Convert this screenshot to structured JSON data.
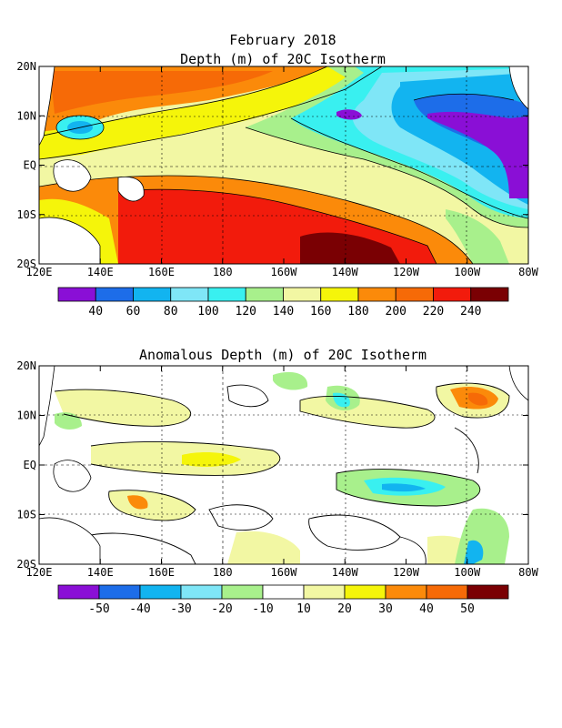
{
  "figure_title": "February 2018",
  "panels": [
    {
      "id": "depth",
      "title": "Depth (m) of 20C Isotherm",
      "lon_ticks": [
        "120E",
        "140E",
        "160E",
        "180",
        "160W",
        "140W",
        "120W",
        "100W",
        "80W"
      ],
      "lat_ticks": [
        "20N",
        "10N",
        "EQ",
        "10S",
        "20S"
      ],
      "colorbar": {
        "colors": [
          "#8a0fd6",
          "#1d6de9",
          "#12b4f0",
          "#7fe6f7",
          "#39f0f0",
          "#a8f08c",
          "#f2f7a3",
          "#f5f50a",
          "#fb8a0a",
          "#f66a07",
          "#f21b0c",
          "#7a0003"
        ],
        "labels": [
          "40",
          "60",
          "80",
          "100",
          "120",
          "140",
          "160",
          "180",
          "200",
          "220",
          "240"
        ]
      }
    },
    {
      "id": "anomaly",
      "title": "Anomalous Depth (m) of 20C Isotherm",
      "lon_ticks": [
        "120E",
        "140E",
        "160E",
        "180",
        "160W",
        "140W",
        "120W",
        "100W",
        "80W"
      ],
      "lat_ticks": [
        "20N",
        "10N",
        "EQ",
        "10S",
        "20S"
      ],
      "colorbar": {
        "colors": [
          "#8a0fd6",
          "#1d6de9",
          "#12b4f0",
          "#7fe6f7",
          "#a8f08c",
          "#ffffff",
          "#f2f7a3",
          "#f5f50a",
          "#fb8a0a",
          "#f66a07",
          "#7a0003"
        ],
        "labels": [
          "-50",
          "-40",
          "-30",
          "-20",
          "-10",
          "10",
          "20",
          "30",
          "40",
          "50"
        ]
      }
    }
  ]
}
